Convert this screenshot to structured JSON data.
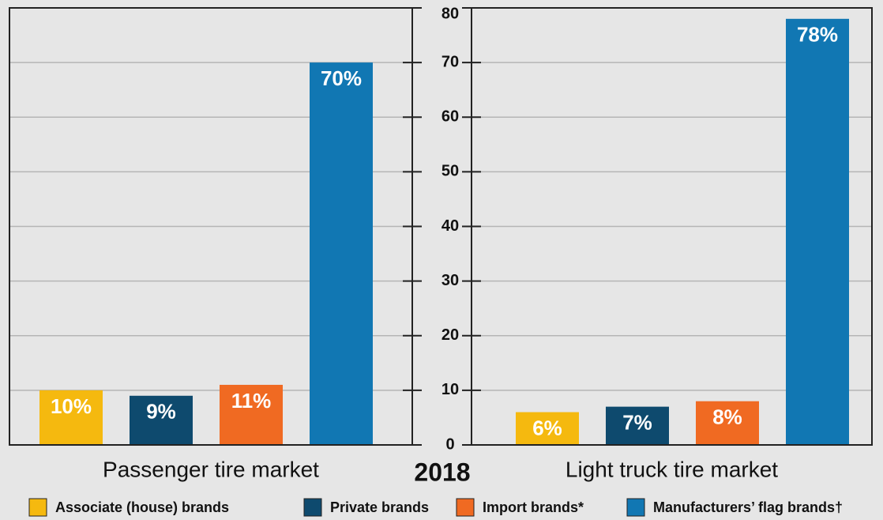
{
  "title": "2018",
  "chart_data": [
    {
      "type": "bar",
      "xlabel": "Passenger tire market",
      "ylim": [
        0,
        80
      ],
      "yticks": [
        0,
        10,
        20,
        30,
        40,
        50,
        60,
        70,
        80
      ],
      "grid": true,
      "series": [
        {
          "name": "Associate (house) brands",
          "color": "#f5b90f",
          "values": [
            10
          ],
          "value_labels": [
            "10%"
          ]
        },
        {
          "name": "Private brands",
          "color": "#0e4a6e",
          "values": [
            9
          ],
          "value_labels": [
            "9%"
          ]
        },
        {
          "name": "Import brands*",
          "color": "#f06a22",
          "values": [
            11
          ],
          "value_labels": [
            "11%"
          ]
        },
        {
          "name": "Manufacturers’ flag brands†",
          "color": "#1177b3",
          "values": [
            70
          ],
          "value_labels": [
            "70%"
          ]
        }
      ]
    },
    {
      "type": "bar",
      "xlabel": "Light truck tire market",
      "ylim": [
        0,
        80
      ],
      "yticks": [
        0,
        10,
        20,
        30,
        40,
        50,
        60,
        70,
        80
      ],
      "grid": true,
      "series": [
        {
          "name": "Associate (house) brands",
          "color": "#f5b90f",
          "values": [
            6
          ],
          "value_labels": [
            "6%"
          ]
        },
        {
          "name": "Private brands",
          "color": "#0e4a6e",
          "values": [
            7
          ],
          "value_labels": [
            "7%"
          ]
        },
        {
          "name": "Import brands*",
          "color": "#f06a22",
          "values": [
            8
          ],
          "value_labels": [
            "8%"
          ]
        },
        {
          "name": "Manufacturers’ flag brands†",
          "color": "#1177b3",
          "values": [
            78
          ],
          "value_labels": [
            "78%"
          ]
        }
      ]
    }
  ]
}
